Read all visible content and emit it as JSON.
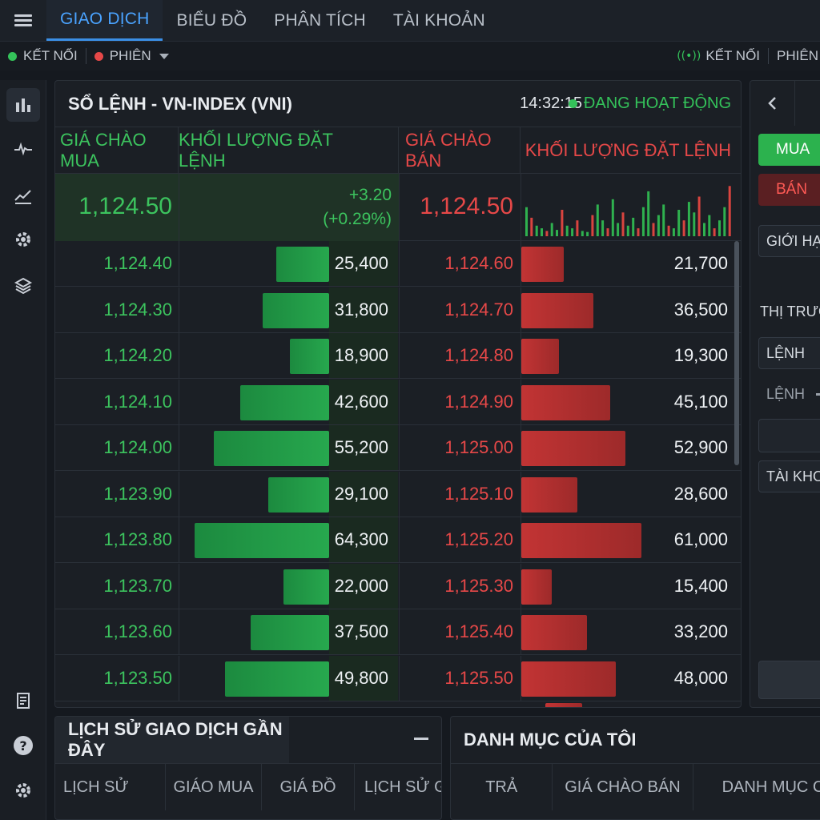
{
  "nav": {
    "tabs": [
      {
        "label": "GIAO DỊCH",
        "active": true
      },
      {
        "label": "BIỂU ĐỒ"
      },
      {
        "label": "PHÂN TÍCH"
      },
      {
        "label": "TÀI KHOẢN"
      }
    ]
  },
  "status": {
    "connection_label": "KẾT NỐI",
    "session_label": "PHIÊN",
    "right_connection_label": "KẾT NỐI",
    "right_session_label": "PHIÊN",
    "colors": {
      "connected": "#34c25a",
      "session": "#e64848"
    }
  },
  "sidebar": {
    "icons": [
      "bar-chart-icon",
      "pulse-icon",
      "trend-line-icon",
      "settings-gear-icon",
      "layers-icon",
      "document-list-icon",
      "help-icon",
      "gear-icon"
    ]
  },
  "orderbook": {
    "title": "SỔ LỆNH - VN-INDEX (VNI)",
    "time": "14:32:15",
    "status": "ĐANG HOẠT ĐỘNG",
    "headers": {
      "bid_price": "GIÁ CHÀO MUA",
      "bid_volume": "KHỐI LƯỢNG ĐẶT LỆNH",
      "ask_price": "GIÁ CHÀO BÁN",
      "ask_volume": "KHỐI LƯỢNG ĐẶT LỆNH"
    },
    "summary": {
      "bid_price": "1,124.50",
      "change": "+3.20",
      "change_pct": "(+0.29%)",
      "ask_price": "1,124.50"
    },
    "rows": [
      {
        "bid": "1,124.40",
        "bid_vol": "25,400",
        "ask": "1,124.60",
        "ask_vol": "21,700"
      },
      {
        "bid": "1,124.30",
        "bid_vol": "31,800",
        "ask": "1,124.70",
        "ask_vol": "36,500"
      },
      {
        "bid": "1,124.20",
        "bid_vol": "18,900",
        "ask": "1,124.80",
        "ask_vol": "19,300"
      },
      {
        "bid": "1,124.10",
        "bid_vol": "42,600",
        "ask": "1,124.90",
        "ask_vol": "45,100"
      },
      {
        "bid": "1,124.00",
        "bid_vol": "55,200",
        "ask": "1,125.00",
        "ask_vol": "52,900"
      },
      {
        "bid": "1,123.90",
        "bid_vol": "29,100",
        "ask": "1,125.10",
        "ask_vol": "28,600"
      },
      {
        "bid": "1,123.80",
        "bid_vol": "64,300",
        "ask": "1,125.20",
        "ask_vol": "61,000"
      },
      {
        "bid": "1,123.70",
        "bid_vol": "22,000",
        "ask": "1,125.30",
        "ask_vol": "15,400"
      },
      {
        "bid": "1,123.60",
        "bid_vol": "37,500",
        "ask": "1,125.40",
        "ask_vol": "33,200"
      },
      {
        "bid": "1,123.50",
        "bid_vol": "49,800",
        "ask": "1,125.50",
        "ask_vol": "48,000"
      }
    ],
    "bid_volumes": [
      25400,
      31800,
      18900,
      42600,
      55200,
      29100,
      64300,
      22000,
      37500,
      49800
    ],
    "ask_volumes": [
      21700,
      36500,
      19300,
      45100,
      52900,
      28600,
      61000,
      15400,
      33200,
      48000
    ],
    "sparkline": [
      0.55,
      0.35,
      0.2,
      0.15,
      0.1,
      0.25,
      0.12,
      0.5,
      0.2,
      0.15,
      0.3,
      0.1,
      0.08,
      0.4,
      0.6,
      0.3,
      0.15,
      0.7,
      0.25,
      0.45,
      0.2,
      0.35,
      0.15,
      0.55,
      0.85,
      0.25,
      0.4,
      0.6,
      0.2,
      0.15,
      0.5,
      0.3,
      0.65,
      0.45,
      0.75,
      0.25,
      0.4,
      0.15,
      0.3,
      0.55,
      0.95
    ],
    "colors": {
      "buy": "#3cc35e",
      "sell": "#e64848"
    }
  },
  "order_form": {
    "buy_label": "MUA",
    "sell_label": "BÁN",
    "limit_label": "GIỚI HẠN",
    "market_label": "THỊ TRƯỜNG",
    "order_label": "LỆNH",
    "order_label_2": "LỆNH",
    "account_label": "TÀI KHOẢN"
  },
  "history": {
    "title": "LỊCH SỬ GIAO DỊCH GẦN ĐÂY",
    "columns": [
      "LỊCH SỬ",
      "GIÁO MUA",
      "GIÁ ĐỒ",
      "LỊCH SỬ GI"
    ]
  },
  "portfolio": {
    "title": "DANH MỤC CỦA TÔI",
    "columns": [
      "TRẢ",
      "GIÁ CHÀO BÁN",
      "DANH MỤC CỦA"
    ]
  }
}
